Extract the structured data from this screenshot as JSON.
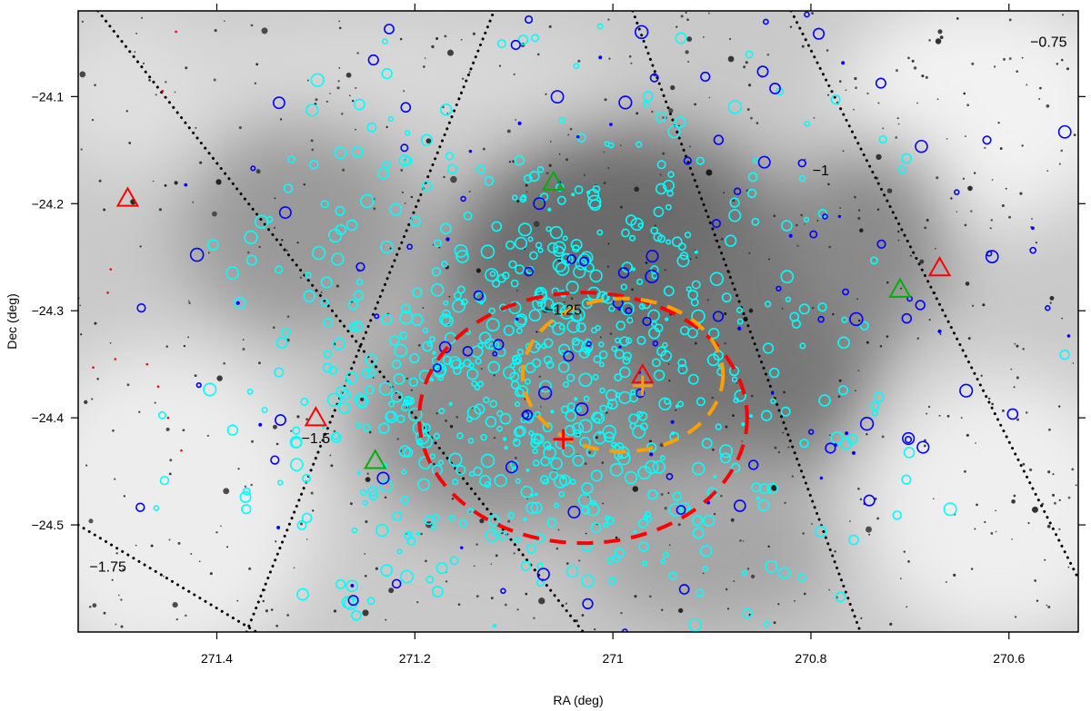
{
  "chart_data": {
    "type": "scatter",
    "title": "",
    "xlabel": "RA (deg)",
    "ylabel": "Dec (deg)",
    "xlim": [
      271.54,
      270.53
    ],
    "ylim": [
      -24.6,
      -24.02
    ],
    "x_reversed": true,
    "x_ticks": [
      271.4,
      271.2,
      271.0,
      270.8,
      270.6
    ],
    "x_tick_labels": [
      "271.4",
      "271.2",
      "271",
      "270.8",
      "270.6"
    ],
    "y_ticks": [
      -24.1,
      -24.2,
      -24.3,
      -24.4,
      -24.5
    ],
    "y_tick_labels": [
      "−24.1",
      "−24.2",
      "−24.3",
      "−24.4",
      "−24.5"
    ],
    "background": "greyscale nebula image",
    "colors": {
      "frame": "#000000",
      "cyan_markers": "#00ffff",
      "blue_markers": "#0000ff",
      "red_markers": "#ff0000",
      "green_markers": "#00b000",
      "red_circle": "#ff0000",
      "orange_circle": "#ffa000",
      "cross": "#ff0000",
      "x_marker": "#ffa000"
    },
    "contours": [
      {
        "label": "−0.75",
        "points": [
          [
            271.37,
            -24.6
          ],
          [
            271.12,
            -24.02
          ]
        ],
        "label_ra": 270.56,
        "label_dec": -24.05
      },
      {
        "label": "−1",
        "points": [
          [
            270.82,
            -24.02
          ],
          [
            270.53,
            -24.55
          ]
        ],
        "label_ra": 270.79,
        "label_dec": -24.17
      },
      {
        "label": "−1.25",
        "points": [
          [
            270.98,
            -24.02
          ],
          [
            270.75,
            -24.6
          ]
        ],
        "label_ra": 271.05,
        "label_dec": -24.3
      },
      {
        "label": "−1.5",
        "points": [
          [
            271.52,
            -24.02
          ],
          [
            271.03,
            -24.6
          ]
        ],
        "label_ra": 271.3,
        "label_dec": -24.42
      },
      {
        "label": "−1.75",
        "points": [
          [
            271.54,
            -24.5
          ],
          [
            271.36,
            -24.6
          ]
        ],
        "label_ra": 271.51,
        "label_dec": -24.54
      }
    ],
    "regions": [
      {
        "name": "cluster boundary",
        "shape": "circle",
        "center_ra": 271.03,
        "center_dec": -24.4,
        "radius_deg": 0.18,
        "color": "red",
        "style": "dashed"
      },
      {
        "name": "core",
        "shape": "circle",
        "center_ra": 270.99,
        "center_dec": -24.36,
        "radius_deg": 0.11,
        "color": "orange",
        "style": "dashed"
      }
    ],
    "special_points": [
      {
        "marker": "plus",
        "ra": 271.05,
        "dec": -24.42,
        "color": "red"
      },
      {
        "marker": "plus",
        "ra": 270.97,
        "dec": -24.37,
        "color": "orange"
      }
    ],
    "series": [
      {
        "name": "",
        "marker": "triangle",
        "color": "red",
        "points": [
          [
            271.49,
            -24.195
          ],
          [
            271.3,
            -24.4
          ],
          [
            270.97,
            -24.36
          ],
          [
            270.67,
            -24.26
          ]
        ]
      },
      {
        "name": "",
        "marker": "triangle",
        "color": "green",
        "points": [
          [
            271.06,
            -24.18
          ],
          [
            270.71,
            -24.28
          ],
          [
            271.24,
            -24.44
          ]
        ]
      }
    ],
    "scatter_clouds": [
      {
        "color": "cyan",
        "count": 720,
        "center_ra": 271.07,
        "center_dec": -24.36,
        "spread_ra": 0.14,
        "spread_dec": 0.12
      },
      {
        "color": "blue",
        "count": 160,
        "center_ra": 270.95,
        "center_dec": -24.3,
        "spread_ra": 0.25,
        "spread_dec": 0.17
      },
      {
        "color": "red",
        "count": 14,
        "center_ra": 271.45,
        "center_dec": -24.3,
        "spread_ra": 0.06,
        "spread_dec": 0.15
      }
    ]
  }
}
